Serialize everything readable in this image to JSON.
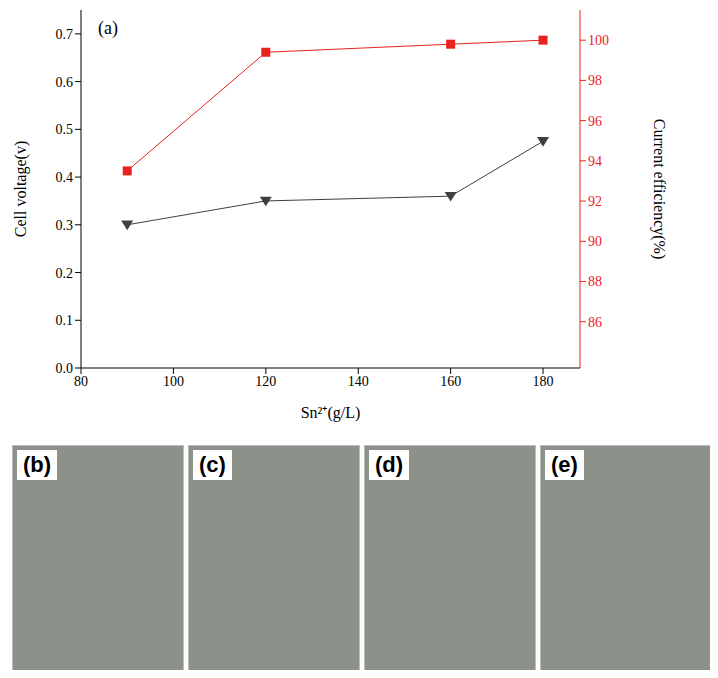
{
  "chart_data": {
    "type": "line",
    "annotation": "(a)",
    "x_label": "Sn²⁺(g/L)",
    "y_label": "Cell voltage(v)",
    "y2_label": "Current efficiency(%)",
    "x": [
      90,
      120,
      160,
      180
    ],
    "series": [
      {
        "color": "#404040",
        "marker": "triangle-down",
        "values": [
          0.3,
          0.35,
          0.36,
          0.475
        ]
      },
      {
        "color": "#e8231f",
        "marker": "square",
        "axis": "y2",
        "values": [
          93.5,
          99.4,
          99.8,
          100.0
        ]
      }
    ],
    "xlim": [
      80,
      188
    ],
    "xticks": [
      80,
      100,
      120,
      140,
      160,
      180
    ],
    "ylim": [
      0,
      0.75
    ],
    "yticks": [
      {
        "value": 0,
        "label": "0.0"
      },
      {
        "value": 0.1,
        "label": "0.1"
      },
      {
        "value": 0.2,
        "label": "0.2"
      },
      {
        "value": 0.3,
        "label": "0.3"
      },
      {
        "value": 0.4,
        "label": "0.4"
      },
      {
        "value": 0.5,
        "label": "0.5"
      },
      {
        "value": 0.6,
        "label": "0.6"
      },
      {
        "value": 0.7,
        "label": "0.7"
      }
    ],
    "y2lim": [
      83.7,
      101.5
    ],
    "y2ticks": [
      86,
      88,
      90,
      92,
      94,
      96,
      98,
      100
    ],
    "grid": false
  },
  "panels": [
    "(b)",
    "(c)",
    "(d)",
    "(e)"
  ]
}
